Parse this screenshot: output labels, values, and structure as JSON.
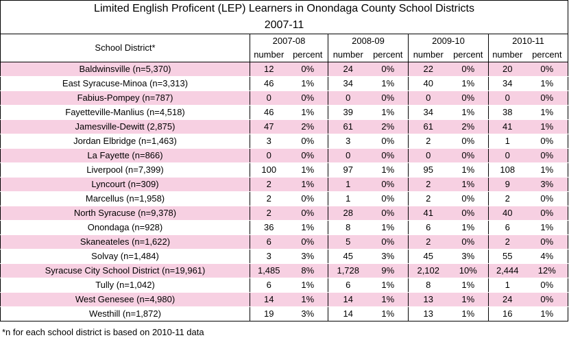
{
  "title_line1": "Limited English Proficent (LEP) Learners in Onondaga County School Districts",
  "title_line2": "2007-11",
  "district_header": "School District*",
  "years": [
    "2007-08",
    "2008-09",
    "2009-10",
    "2010-11"
  ],
  "sub_number": "number",
  "sub_percent": "percent",
  "rows": [
    {
      "district": "Baldwinsville (n=5,370)",
      "cells": [
        "12",
        "0%",
        "24",
        "0%",
        "22",
        "0%",
        "20",
        "0%"
      ],
      "highlight": true
    },
    {
      "district": "East Syracuse-Minoa (n=3,313)",
      "cells": [
        "46",
        "1%",
        "34",
        "1%",
        "40",
        "1%",
        "34",
        "1%"
      ],
      "highlight": false
    },
    {
      "district": "Fabius-Pompey (n=787)",
      "cells": [
        "0",
        "0%",
        "0",
        "0%",
        "0",
        "0%",
        "0",
        "0%"
      ],
      "highlight": true
    },
    {
      "district": "Fayetteville-Manlius (n=4,518)",
      "cells": [
        "46",
        "1%",
        "39",
        "1%",
        "34",
        "1%",
        "38",
        "1%"
      ],
      "highlight": false
    },
    {
      "district": "Jamesville-Dewitt (2,875)",
      "cells": [
        "47",
        "2%",
        "61",
        "2%",
        "61",
        "2%",
        "41",
        "1%"
      ],
      "highlight": true
    },
    {
      "district": "Jordan Elbridge (n=1,463)",
      "cells": [
        "3",
        "0%",
        "3",
        "0%",
        "2",
        "0%",
        "1",
        "0%"
      ],
      "highlight": false
    },
    {
      "district": "La Fayette (n=866)",
      "cells": [
        "0",
        "0%",
        "0",
        "0%",
        "0",
        "0%",
        "0",
        "0%"
      ],
      "highlight": true
    },
    {
      "district": "Liverpool (n=7,399)",
      "cells": [
        "100",
        "1%",
        "97",
        "1%",
        "95",
        "1%",
        "108",
        "1%"
      ],
      "highlight": false
    },
    {
      "district": "Lyncourt (n=309)",
      "cells": [
        "2",
        "1%",
        "1",
        "0%",
        "2",
        "1%",
        "9",
        "3%"
      ],
      "highlight": true
    },
    {
      "district": "Marcellus (n=1,958)",
      "cells": [
        "2",
        "0%",
        "1",
        "0%",
        "2",
        "0%",
        "2",
        "0%"
      ],
      "highlight": false
    },
    {
      "district": "North Syracuse (n=9,378)",
      "cells": [
        "2",
        "0%",
        "28",
        "0%",
        "41",
        "0%",
        "40",
        "0%"
      ],
      "highlight": true
    },
    {
      "district": "Onondaga (n=928)",
      "cells": [
        "36",
        "1%",
        "8",
        "1%",
        "6",
        "1%",
        "6",
        "1%"
      ],
      "highlight": false
    },
    {
      "district": "Skaneateles (n=1,622)",
      "cells": [
        "6",
        "0%",
        "5",
        "0%",
        "2",
        "0%",
        "2",
        "0%"
      ],
      "highlight": true
    },
    {
      "district": "Solvay (n=1,484)",
      "cells": [
        "3",
        "3%",
        "45",
        "3%",
        "45",
        "3%",
        "55",
        "4%"
      ],
      "highlight": false
    },
    {
      "district": "Syracuse City School District (n=19,961)",
      "cells": [
        "1,485",
        "8%",
        "1,728",
        "9%",
        "2,102",
        "10%",
        "2,444",
        "12%"
      ],
      "highlight": true
    },
    {
      "district": "Tully (n=1,042)",
      "cells": [
        "6",
        "1%",
        "6",
        "1%",
        "8",
        "1%",
        "1",
        "0%"
      ],
      "highlight": false
    },
    {
      "district": "West Genesee (n=4,980)",
      "cells": [
        "14",
        "1%",
        "14",
        "1%",
        "13",
        "1%",
        "24",
        "0%"
      ],
      "highlight": true
    },
    {
      "district": "Westhill (n=1,872)",
      "cells": [
        "19",
        "3%",
        "14",
        "1%",
        "13",
        "1%",
        "16",
        "1%"
      ],
      "highlight": false
    }
  ],
  "footnote": "*n for each school district is based on 2010-11 data",
  "colors": {
    "highlight": "#f7d0e2",
    "border": "#000000"
  }
}
